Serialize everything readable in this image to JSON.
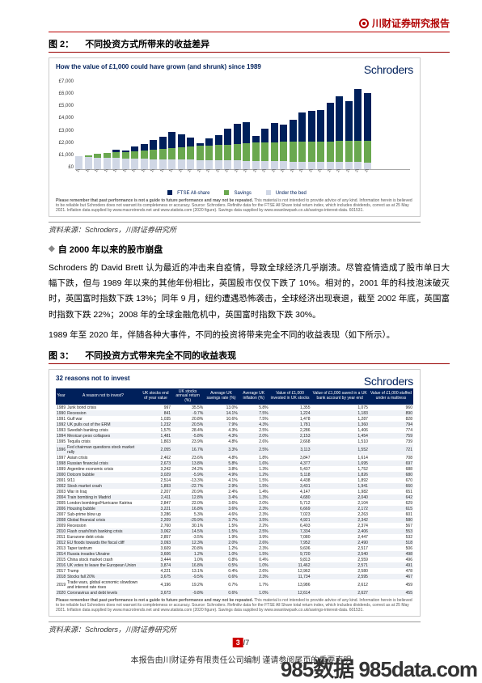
{
  "header": {
    "title": "川财证券研究报告"
  },
  "fig2": {
    "label": "图 2：",
    "title": "不同投资方式所带来的收益差异",
    "card_title": "How the value of £1,000 could have grown (and shrunk) since 1989",
    "brand": "Schroders",
    "type": "bar",
    "ylim": [
      0,
      7000
    ],
    "ytick_step": 1000,
    "ytick_labels": [
      "£7,000",
      "£6,000",
      "£5,000",
      "£4,000",
      "£3,000",
      "£2,000",
      "£1,000",
      "£0"
    ],
    "years": [
      1989,
      1990,
      1991,
      1992,
      1993,
      1994,
      1995,
      1996,
      1997,
      1998,
      1999,
      2000,
      2001,
      2002,
      2003,
      2004,
      2005,
      2006,
      2007,
      2008,
      2009,
      2010,
      2011,
      2012,
      2013,
      2014,
      2015,
      2016,
      2017,
      2018,
      2019,
      2020
    ],
    "series": {
      "ftse": {
        "label": "FTSE All-share",
        "color": "#00205b",
        "values": [
          1000,
          950,
          1100,
          1250,
          1500,
          1450,
          1750,
          1950,
          2250,
          2500,
          2900,
          2700,
          2450,
          2000,
          2350,
          2600,
          3100,
          3500,
          3650,
          2550,
          3150,
          3550,
          3450,
          3800,
          4400,
          4500,
          4550,
          5150,
          5650,
          5250,
          6200,
          5900
        ]
      },
      "savings": {
        "label": "Savings",
        "color": "#6aa84f",
        "values": [
          1000,
          1080,
          1160,
          1230,
          1290,
          1340,
          1400,
          1450,
          1510,
          1580,
          1640,
          1700,
          1750,
          1790,
          1820,
          1860,
          1900,
          1950,
          2010,
          2070,
          2080,
          2090,
          2100,
          2110,
          2120,
          2130,
          2140,
          2150,
          2160,
          2180,
          2200,
          2210
        ]
      },
      "bed": {
        "label": "Under the bed",
        "color": "#d0d7e5",
        "values": [
          1000,
          950,
          905,
          875,
          850,
          830,
          810,
          790,
          775,
          760,
          745,
          730,
          720,
          710,
          700,
          690,
          680,
          665,
          650,
          635,
          630,
          615,
          600,
          590,
          580,
          575,
          575,
          565,
          555,
          545,
          535,
          525
        ]
      }
    },
    "legend": [
      {
        "label": "FTSE All-share",
        "color": "#00205b"
      },
      {
        "label": "Savings",
        "color": "#6aa84f"
      },
      {
        "label": "Under the bed",
        "color": "#d0d7e5"
      }
    ],
    "disclaimer_bold": "Please remember that past performance is not a guide to future performance and may not be repeated.",
    "disclaimer_rest": " This material is not intended to provide advice of any kind. Information herein is believed to be reliable but Schroders does not warrant its completeness or accuracy. Source: Schroders. Refinitiv data for the FTSE All Share total return index, which includes dividends, correct as at 25 May 2021. Inflation data supplied by www.macrotrends.net and www.statista.com (2020 figure). Savings data supplied by www.swanlowpark.co.uk/savings-interest-data. 601531.",
    "source": "资料来源：Schroders，川财证券研究所",
    "colors": {
      "title": "#00205b",
      "grid": "#e0e0e0",
      "background": "#ffffff"
    }
  },
  "section": {
    "title": "自 2000 年以来的股市崩盘",
    "para1": "Schroders 的 David Brett 认为最近的冲击来自疫情，导致全球经济几乎崩溃。尽管疫情造成了股市单日大幅下跌，但与 1989 年以来的其他年份相比，英国股市仅仅下跌了 10%。相对的，2001 年的科技泡沫破灭时，英国富时指数下跌 13%；同年 9 月，纽约遭遇恐怖袭击，全球经济出现衰退，截至 2002 年底，英国富时指数下跌 22%；2008 年的全球金融危机中，英国富时指数下跌 30%。",
    "para2": "1989 年至 2020 年，伴随各种大事件，不同的投资将带来完全不同的收益表现（如下所示）。"
  },
  "fig3": {
    "label": "图 3：",
    "title": "不同投资方式带来完全不同的收益表现",
    "card_title": "32 reasons not to invest",
    "brand": "Schroders",
    "columns": [
      "Year",
      "A reason not to invest?",
      "UK stocks end of year value",
      "UK stocks annual return (%)",
      "Average UK savings rate (%)",
      "Average UK inflation (%)",
      "Value of £1,000 invested in UK stocks",
      "Value of £1,000 saved in a UK bank account by year end",
      "Value of £1,000 stuffed under a mattress"
    ],
    "rows": [
      [
        1989,
        "Junk bond crisis",
        "997",
        "35.5%",
        "13.0%",
        "5.8%",
        "1,355",
        "1,075",
        "960"
      ],
      [
        1990,
        "Recession",
        "841",
        "-9.7%",
        "14.1%",
        "7.5%",
        "1,224",
        "1,183",
        "890"
      ],
      [
        1991,
        "Gulf war",
        "1,035",
        "20.8%",
        "10.6%",
        "7.5%",
        "1,478",
        "1,287",
        "828"
      ],
      [
        1992,
        "UK pulls out of the ERM",
        "1,232",
        "20.5%",
        "7.9%",
        "4.3%",
        "1,781",
        "1,360",
        "794"
      ],
      [
        1993,
        "Swedish banking crisis",
        "1,575",
        "28.4%",
        "4.3%",
        "2.5%",
        "2,286",
        "1,406",
        "774"
      ],
      [
        1994,
        "Mexican peso collapses",
        "1,481",
        "-5.8%",
        "4.3%",
        "2.0%",
        "2,153",
        "1,454",
        "759"
      ],
      [
        1995,
        "Tequila crisis",
        "1,803",
        "23.9%",
        "4.8%",
        "2.6%",
        "2,668",
        "1,510",
        "739"
      ],
      [
        1996,
        "Fed chairman questions stock market rally",
        "2,055",
        "16.7%",
        "3.3%",
        "2.5%",
        "3,113",
        "1,552",
        "721"
      ],
      [
        1997,
        "Asian crisis",
        "2,462",
        "23.6%",
        "4.8%",
        "1.8%",
        "3,847",
        "1,614",
        "708"
      ],
      [
        1998,
        "Russian financial crisis",
        "2,673",
        "13.8%",
        "5.8%",
        "1.6%",
        "4,377",
        "1,695",
        "697"
      ],
      [
        1999,
        "Argentine economic crisis",
        "3,242",
        "24.2%",
        "3.8%",
        "1.3%",
        "5,437",
        "1,752",
        "688"
      ],
      [
        2000,
        "Dotcom bubble",
        "3,029",
        "-5.9%",
        "4.9%",
        "1.2%",
        "5,118",
        "1,826",
        "680"
      ],
      [
        2001,
        "9/11",
        "2,514",
        "-13.3%",
        "4.1%",
        "1.5%",
        "4,438",
        "1,892",
        "670"
      ],
      [
        2002,
        "Stock market crash",
        "1,893",
        "-22.7%",
        "2.9%",
        "1.5%",
        "3,431",
        "1,941",
        "660"
      ],
      [
        2003,
        "War in Iraq",
        "2,207",
        "20.9%",
        "2.4%",
        "1.4%",
        "4,147",
        "1,982",
        "651"
      ],
      [
        2004,
        "Train bombing in Madrid",
        "2,411",
        "12.8%",
        "3.4%",
        "1.3%",
        "4,680",
        "2,040",
        "642"
      ],
      [
        2005,
        "London bombings/Hurricane Katrina",
        "2,847",
        "22.0%",
        "3.6%",
        "2.0%",
        "5,712",
        "2,104",
        "629"
      ],
      [
        2006,
        "Housing bubble",
        "3,221",
        "16.8%",
        "3.6%",
        "2.3%",
        "6,669",
        "2,172",
        "615"
      ],
      [
        2007,
        "Sub-prime blow up",
        "3,286",
        "5.3%",
        "4.6%",
        "2.3%",
        "7,023",
        "2,263",
        "601"
      ],
      [
        2008,
        "Global financial crisis",
        "2,209",
        "-29.9%",
        "3.7%",
        "3.5%",
        "4,921",
        "2,342",
        "580"
      ],
      [
        2009,
        "Recession",
        "2,760",
        "30.1%",
        "1.5%",
        "2.2%",
        "6,403",
        "2,374",
        "567"
      ],
      [
        2010,
        "Flash crash/Irish banking crisis",
        "3,062",
        "14.5%",
        "1.5%",
        "2.5%",
        "7,334",
        "2,406",
        "553"
      ],
      [
        2011,
        "Eurozone debt crisis",
        "2,857",
        "-3.5%",
        "1.9%",
        "3.9%",
        "7,080",
        "2,447",
        "532"
      ],
      [
        2012,
        "EU floods towards the fiscal cliff",
        "3,093",
        "12.3%",
        "2.0%",
        "2.6%",
        "7,952",
        "2,490",
        "518"
      ],
      [
        2013,
        "Taper tantrum",
        "3,609",
        "20.8%",
        "1.2%",
        "2.3%",
        "9,606",
        "2,517",
        "506"
      ],
      [
        2014,
        "Russia invades Ukraine",
        "3,606",
        "1.2%",
        "1.0%",
        "1.5%",
        "9,720",
        "2,540",
        "498"
      ],
      [
        2015,
        "China stock market crash",
        "3,444",
        "1.0%",
        "0.8%",
        "0.4%",
        "9,813",
        "2,559",
        "496"
      ],
      [
        2016,
        "UK votes to leave the European Union",
        "3,874",
        "16.8%",
        "0.5%",
        "1.0%",
        "11,462",
        "2,571",
        "491"
      ],
      [
        2017,
        "Trump",
        "4,221",
        "13.1%",
        "0.4%",
        "2.6%",
        "12,962",
        "2,580",
        "478"
      ],
      [
        2018,
        "Stocks fall 20%",
        "3,675",
        "-9.5%",
        "0.6%",
        "2.3%",
        "11,734",
        "2,595",
        "467"
      ],
      [
        2019,
        "Trade wars, global economic slowdown and interest rate rises",
        "4,196",
        "19.2%",
        "0.7%",
        "1.7%",
        "13,986",
        "2,612",
        "459"
      ],
      [
        2020,
        "Coronavirus and debt levels",
        "3,673",
        "-9.8%",
        "0.6%",
        "1.0%",
        "12,614",
        "2,627",
        "455"
      ]
    ],
    "disclaimer_bold": "Please remember that past performance is not a guide to future performance and may not be repeated.",
    "disclaimer_rest": " This material is not intended to provide advice of any kind. Information herein is believed to be reliable but Schroders does not warrant its completeness or accuracy. Source: Schroders. Refinitiv data for the FTSE All Share total return index, which includes dividends, correct as at 25 May 2021. Inflation data supplied by www.macrotrends.net and www.statista.com (2020 figure). Savings data supplied by www.swanlowpark.co.uk/savings-interest-data. 601531.",
    "source": "资料来源：Schroders，川财证券研究所"
  },
  "footer": {
    "page_cur": "3",
    "page_sep": "/",
    "page_total": "7",
    "text": "本报告由川财证券有限责任公司编制  谨请参阅尾页的重要声明"
  },
  "watermark": "985数据 985data.com"
}
